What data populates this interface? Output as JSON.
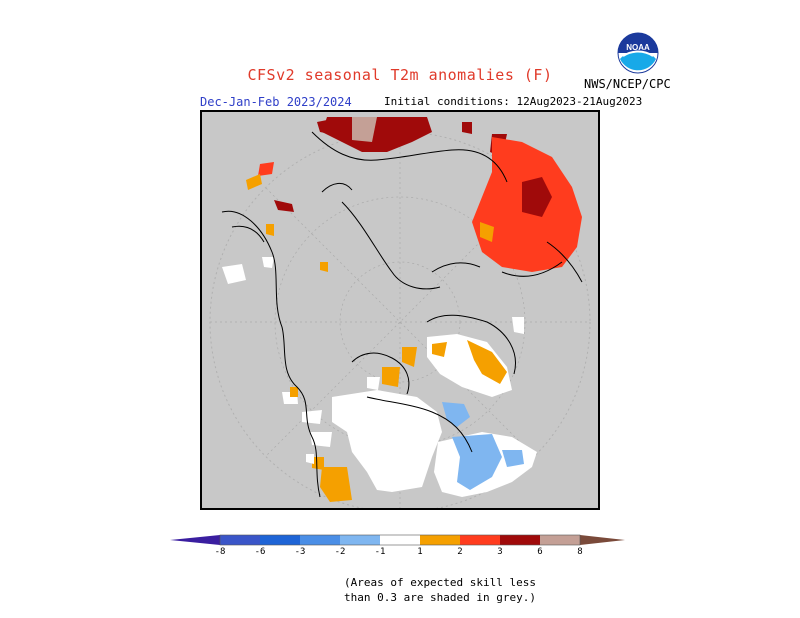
{
  "header": {
    "title": "CFSv2 seasonal T2m anomalies (F)",
    "season": "Dec-Jan-Feb 2023/2024",
    "initial_conditions": "Initial conditions: 12Aug2023-21Aug2023",
    "agency": "NWS/NCEP/CPC",
    "logo_text": "NOAA"
  },
  "colors": {
    "grey": "#c8c8c8",
    "c_lt_m8": "#3a1ea0",
    "c_m8_m6": "#3a55c8",
    "c_m6_m3": "#1e64d6",
    "c_m3_m2": "#4a8ee6",
    "c_m2_m1": "#7fb6f0",
    "c_m1_p1": "#ffffff",
    "c_p1_p2": "#f5a000",
    "c_p2_p3": "#ff3c1e",
    "c_p3_p6": "#a00a0a",
    "c_p6_p8": "#c4a096",
    "c_gt_p8": "#7a4a3a"
  },
  "colorbar": {
    "labels": [
      "-8",
      "-6",
      "-3",
      "-2",
      "-1",
      "1",
      "2",
      "3",
      "6",
      "8"
    ]
  },
  "note": {
    "line1": "(Areas of expected skill less",
    "line2": "than 0.3 are shaded in grey.)"
  }
}
